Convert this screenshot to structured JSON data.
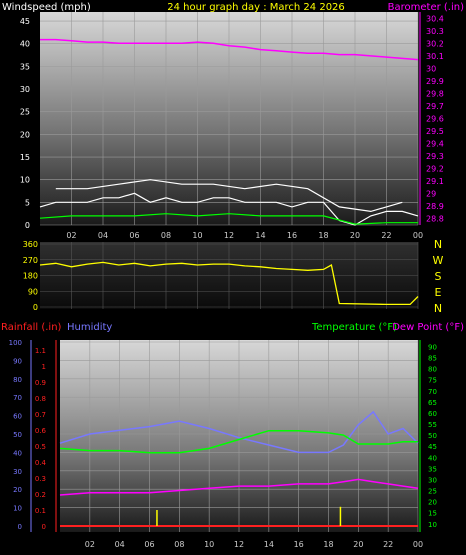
{
  "colors": {
    "white": "#ffffff",
    "yellow": "#ffff00",
    "magenta": "#ff00ff",
    "green": "#00ff00",
    "blue": "#7878ff",
    "red": "#ff2020",
    "tick_label": "#cccccc"
  },
  "chart_data": [
    {
      "type": "line",
      "panel": "wind-barometer",
      "title": "24 hour graph day : March 24 2026",
      "ylabel_left": "Windspeed (mph)",
      "ylabel_right": "Barometer (.in)",
      "x_ticks": [
        "02",
        "04",
        "06",
        "08",
        "10",
        "12",
        "14",
        "16",
        "18",
        "20",
        "22",
        "00"
      ],
      "left_ticks": [
        "45",
        "40",
        "35",
        "30",
        "25",
        "20",
        "15",
        "10",
        "5",
        "0"
      ],
      "right_ticks": [
        "30.4",
        "30.3",
        "30.2",
        "30.1",
        "30",
        "29.9",
        "29.8",
        "29.7",
        "29.6",
        "29.5",
        "29.4",
        "29.3",
        "29.2",
        "29.1",
        "29",
        "28.9",
        "28.8"
      ],
      "ylim_left": [
        0,
        47
      ],
      "ylim_right": [
        28.75,
        30.45
      ],
      "grid": true,
      "series": [
        {
          "name": "Barometer",
          "axis": "right",
          "color": "#ff00ff",
          "x": [
            0,
            1,
            2,
            3,
            4,
            5,
            6,
            7,
            8,
            9,
            10,
            11,
            12,
            13,
            14,
            15,
            16,
            17,
            18,
            19,
            20,
            21,
            22,
            23,
            24
          ],
          "values": [
            30.23,
            30.23,
            30.22,
            30.21,
            30.21,
            30.2,
            30.2,
            30.2,
            30.2,
            30.2,
            30.21,
            30.2,
            30.18,
            30.17,
            30.15,
            30.14,
            30.13,
            30.12,
            30.12,
            30.11,
            30.11,
            30.1,
            30.09,
            30.08,
            30.07
          ]
        },
        {
          "name": "Windspeed",
          "axis": "left",
          "color": "#ffffff",
          "x": [
            0,
            1,
            2,
            3,
            4,
            5,
            6,
            7,
            8,
            9,
            10,
            11,
            12,
            13,
            14,
            15,
            16,
            17,
            18,
            19,
            20,
            21,
            22,
            23,
            24
          ],
          "values": [
            4,
            5,
            5,
            5,
            6,
            6,
            7,
            5,
            6,
            5,
            5,
            6,
            6,
            5,
            5,
            5,
            4,
            5,
            5,
            1,
            0,
            2,
            3,
            3,
            2
          ]
        },
        {
          "name": "Wind gust",
          "axis": "left",
          "color": "#ffffff",
          "x": [
            1,
            3,
            5,
            7,
            9,
            11,
            13,
            15,
            17,
            19,
            21,
            23
          ],
          "values": [
            8,
            8,
            9,
            10,
            9,
            9,
            8,
            9,
            8,
            4,
            3,
            5
          ]
        },
        {
          "name": "Average wind",
          "axis": "left",
          "color": "#00ff00",
          "x": [
            0,
            2,
            4,
            6,
            8,
            10,
            12,
            14,
            16,
            18,
            20,
            22,
            24
          ],
          "values": [
            1.5,
            2,
            2,
            2,
            2.5,
            2,
            2.5,
            2,
            2,
            2,
            0.2,
            0.5,
            0.5
          ]
        }
      ]
    },
    {
      "type": "line",
      "panel": "wind-direction",
      "x_ticks": [
        "02",
        "04",
        "06",
        "08",
        "10",
        "12",
        "14",
        "16",
        "18",
        "20",
        "22",
        "00"
      ],
      "left_ticks": [
        "360",
        "270",
        "180",
        "90",
        "0"
      ],
      "right_labels": [
        "N",
        "W",
        "S",
        "E",
        "N"
      ],
      "ylim": [
        0,
        360
      ],
      "grid": true,
      "series": [
        {
          "name": "Wind direction",
          "color": "#ffff00",
          "x": [
            0,
            1,
            2,
            3,
            4,
            5,
            6,
            7,
            8,
            9,
            10,
            11,
            12,
            13,
            14,
            15,
            16,
            17,
            18,
            18.5,
            19,
            22,
            23.5,
            24
          ],
          "values": [
            240,
            250,
            230,
            245,
            255,
            240,
            250,
            235,
            245,
            250,
            240,
            245,
            245,
            235,
            230,
            220,
            215,
            210,
            215,
            240,
            20,
            15,
            15,
            60
          ]
        }
      ]
    },
    {
      "type": "line",
      "panel": "rain-humidity-temperature",
      "legend": [
        "Rainfall (.in)",
        "Humidity",
        "Temperature (°F)",
        "Dew Point (°F)"
      ],
      "x_ticks": [
        "02",
        "04",
        "06",
        "08",
        "10",
        "12",
        "14",
        "16",
        "18",
        "20",
        "22",
        "00"
      ],
      "humidity_ticks": [
        "100",
        "90",
        "80",
        "70",
        "60",
        "50",
        "40",
        "30",
        "20",
        "10",
        "0"
      ],
      "rain_ticks": [
        "1.1",
        "1",
        "0.9",
        "0.8",
        "0.7",
        "0.6",
        "0.5",
        "0.4",
        "0.3",
        "0.2",
        "0.1",
        "0"
      ],
      "temp_ticks": [
        "90",
        "85",
        "80",
        "75",
        "70",
        "65",
        "60",
        "55",
        "50",
        "45",
        "40",
        "35",
        "30",
        "25",
        "20",
        "15",
        "10"
      ],
      "ylim_humidity": [
        0,
        100
      ],
      "ylim_rain": [
        0,
        1.15
      ],
      "ylim_temp": [
        9,
        92
      ],
      "grid": true,
      "series": [
        {
          "name": "Humidity",
          "axis": "humidity",
          "color": "#7878ff",
          "x": [
            0,
            2,
            4,
            6,
            8,
            10,
            12,
            14,
            16,
            18,
            19,
            20,
            21,
            22,
            23,
            24
          ],
          "values": [
            45,
            50,
            52,
            54,
            57,
            53,
            48,
            44,
            40,
            40,
            44,
            55,
            62,
            50,
            53,
            45
          ]
        },
        {
          "name": "Temperature (°F)",
          "axis": "temp",
          "color": "#00ff00",
          "x": [
            0,
            2,
            4,
            6,
            8,
            10,
            12,
            14,
            16,
            18,
            19,
            20,
            21,
            22,
            23,
            24
          ],
          "values": [
            44,
            43,
            43,
            42,
            42,
            44,
            48,
            52,
            52,
            51,
            50,
            46,
            46,
            46,
            47,
            47
          ]
        },
        {
          "name": "Dew Point (°F)",
          "axis": "temp",
          "color": "#ff00ff",
          "x": [
            0,
            2,
            4,
            6,
            8,
            10,
            12,
            14,
            16,
            18,
            19,
            20,
            21,
            22,
            23,
            24
          ],
          "values": [
            23,
            24,
            24,
            24,
            25,
            26,
            27,
            27,
            28,
            28,
            29,
            30,
            29,
            28,
            27,
            26
          ]
        },
        {
          "name": "Rainfall (.in)",
          "axis": "rain",
          "color": "#ffff00",
          "type": "bar",
          "x": [
            6.5,
            18.8
          ],
          "values": [
            0.1,
            0.12
          ]
        }
      ]
    }
  ]
}
